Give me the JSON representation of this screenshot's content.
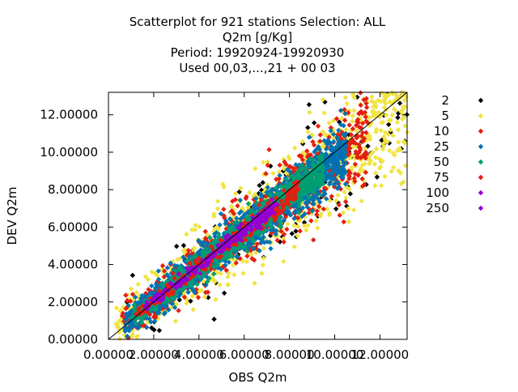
{
  "chart_data": {
    "type": "scatter",
    "title_lines": [
      "Scatterplot for  921 stations Selection: ALL",
      "Q2m [g/Kg]",
      "Period: 19920924-19920930",
      "Used  00,03,...,21  + 00 03"
    ],
    "xlabel": "OBS Q2m",
    "ylabel": "DEV Q2m",
    "xlim": [
      0,
      13.2
    ],
    "ylim": [
      0,
      13.2
    ],
    "x_ticks": [
      0,
      2,
      4,
      6,
      8,
      10,
      12
    ],
    "y_ticks": [
      0,
      2,
      4,
      6,
      8,
      10,
      12
    ],
    "tick_labels": [
      "0.00000",
      "2.00000",
      "4.00000",
      "6.00000",
      "8.00000",
      "10.00000",
      "12.00000"
    ],
    "grid": false,
    "legend_placement": "right",
    "reference_line": "y=x",
    "series": [
      {
        "name": "2",
        "color": "#000000",
        "cloud": {
          "x_range": [
            0.3,
            13.2
          ],
          "spread": 1.5
        }
      },
      {
        "name": "5",
        "color": "#f0e442",
        "cloud": {
          "x_range": [
            0.3,
            13.2
          ],
          "spread": 1.2
        }
      },
      {
        "name": "10",
        "color": "#e51e10",
        "cloud": {
          "x_range": [
            0.6,
            11.5
          ],
          "spread": 0.9
        }
      },
      {
        "name": "25",
        "color": "#0072b2",
        "cloud": {
          "x_range": [
            0.7,
            10.5
          ],
          "spread": 0.6
        }
      },
      {
        "name": "50",
        "color": "#009e73",
        "cloud": {
          "x_range": [
            1.0,
            9.5
          ],
          "spread": 0.4
        }
      },
      {
        "name": "75",
        "color": "#e51e10",
        "cloud": {
          "x_range": [
            1.2,
            8.5
          ],
          "spread": 0.3
        }
      },
      {
        "name": "100",
        "color": "#9400d3",
        "cloud": {
          "x_range": [
            1.5,
            7.5
          ],
          "spread": 0.2
        }
      },
      {
        "name": "250",
        "color": "#9400d3",
        "cloud": {
          "x_range": [
            6.3,
            7.3
          ],
          "spread": 0.15
        }
      }
    ]
  }
}
